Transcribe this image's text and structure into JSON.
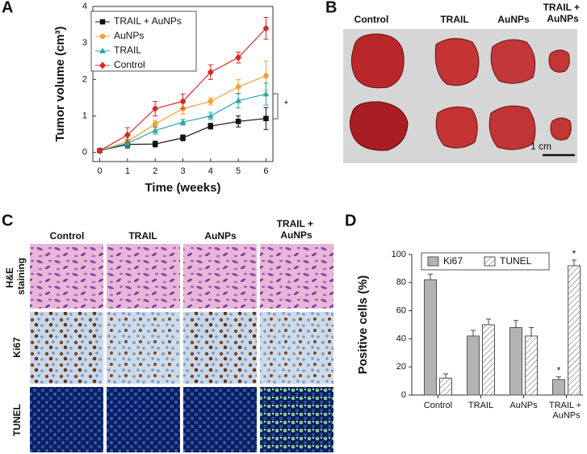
{
  "chart_data": [
    {
      "type": "line",
      "label": "A",
      "xlabel": "Time (weeks)",
      "ylabel": "Tumor volume (cm³)",
      "x": [
        0,
        1,
        2,
        3,
        4,
        5,
        6
      ],
      "xlim": [
        -0.25,
        6.25
      ],
      "xticks": [
        0,
        1,
        2,
        3,
        4,
        5,
        6
      ],
      "ylim": [
        -0.25,
        4
      ],
      "yticks": [
        0,
        1,
        2,
        3,
        4
      ],
      "annotation": "*",
      "series": [
        {
          "name": "TRAIL + AuNPs",
          "color": "#111111",
          "marker": "square",
          "values": [
            0.05,
            0.22,
            0.23,
            0.4,
            0.72,
            0.85,
            0.93
          ],
          "errors": [
            0.05,
            0.1,
            0.08,
            0.08,
            0.08,
            0.15,
            0.3
          ]
        },
        {
          "name": "AuNPs",
          "color": "#f5a030",
          "marker": "circle",
          "values": [
            0.05,
            0.3,
            0.78,
            1.2,
            1.4,
            1.8,
            2.1
          ],
          "errors": [
            0.05,
            0.1,
            0.1,
            0.15,
            0.1,
            0.2,
            0.4
          ]
        },
        {
          "name": "TRAIL",
          "color": "#2aa8a8",
          "marker": "triangle",
          "values": [
            0.05,
            0.25,
            0.6,
            0.83,
            1.0,
            1.42,
            1.6
          ],
          "errors": [
            0.05,
            0.1,
            0.1,
            0.08,
            0.1,
            0.2,
            0.3
          ]
        },
        {
          "name": "Control",
          "color": "#d62828",
          "marker": "diamond",
          "values": [
            0.05,
            0.48,
            1.2,
            1.4,
            2.2,
            2.6,
            3.4
          ],
          "errors": [
            0.05,
            0.2,
            0.2,
            0.2,
            0.2,
            0.15,
            0.3
          ]
        }
      ]
    },
    {
      "type": "bar",
      "label": "D",
      "ylabel": "Positive cells (%)",
      "categories": [
        "Control",
        "TRAIL",
        "AuNPs",
        "TRAIL + AuNPs"
      ],
      "ylim": [
        0,
        100
      ],
      "yticks": [
        0,
        20,
        40,
        60,
        80,
        100
      ],
      "annotations": [
        "*",
        "*"
      ],
      "series": [
        {
          "name": "Ki67",
          "color": "#b3b3b3",
          "values": [
            82,
            42,
            48,
            11
          ],
          "errors": [
            4,
            4,
            5,
            2
          ]
        },
        {
          "name": "TUNEL",
          "color": "#ffffff",
          "hatch": true,
          "values": [
            12,
            50,
            42,
            92
          ],
          "errors": [
            3,
            4,
            6,
            4
          ]
        }
      ]
    }
  ],
  "panel_b": {
    "label": "B",
    "columns": [
      "Control",
      "TRAIL",
      "AuNPs",
      "TRAIL + AuNPs"
    ],
    "scale_bar": "1 cm"
  },
  "panel_c": {
    "label": "C",
    "columns": [
      "Control",
      "TRAIL",
      "AuNPs",
      "TRAIL + AuNPs"
    ],
    "rows": [
      "H&E staining",
      "Ki67",
      "TUNEL"
    ]
  }
}
